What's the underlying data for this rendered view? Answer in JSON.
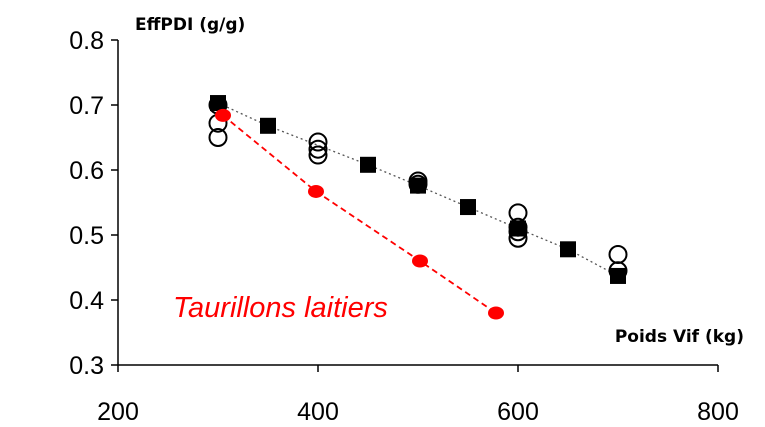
{
  "chart_data": {
    "type": "scatter",
    "title": "",
    "ylabel": "EffPDI (g/g)",
    "xlabel": "Poids Vif (kg)",
    "xlim": [
      200,
      800
    ],
    "ylim": [
      0.3,
      0.8
    ],
    "x_ticks": [
      "200",
      "400",
      "600",
      "800"
    ],
    "y_ticks": [
      "0.3",
      "0.4",
      "0.5",
      "0.6",
      "0.7",
      "0.8"
    ],
    "grid": false,
    "legend": "none",
    "series": [
      {
        "marker": "square",
        "color": "#000000",
        "line": "dotted",
        "x": [
          300,
          350,
          450,
          500,
          550,
          600,
          650,
          700
        ],
        "y": [
          0.703,
          0.668,
          0.608,
          0.576,
          0.543,
          0.51,
          0.478,
          0.437
        ]
      },
      {
        "marker": "open-circle",
        "color": "#000000",
        "line": "none",
        "x": [
          300,
          300,
          300,
          400,
          400,
          400,
          500,
          500,
          600,
          600,
          600,
          600,
          700,
          700
        ],
        "y": [
          0.7,
          0.672,
          0.65,
          0.643,
          0.632,
          0.623,
          0.583,
          0.578,
          0.534,
          0.512,
          0.505,
          0.495,
          0.47,
          0.445
        ]
      },
      {
        "name": "Taurillons laitiers",
        "marker": "filled-ellipse",
        "color": "#ff0000",
        "line": "dashed",
        "x": [
          305,
          398,
          502,
          578
        ],
        "y": [
          0.684,
          0.567,
          0.46,
          0.38
        ]
      }
    ],
    "annotation": "Taurillons laitiers"
  }
}
